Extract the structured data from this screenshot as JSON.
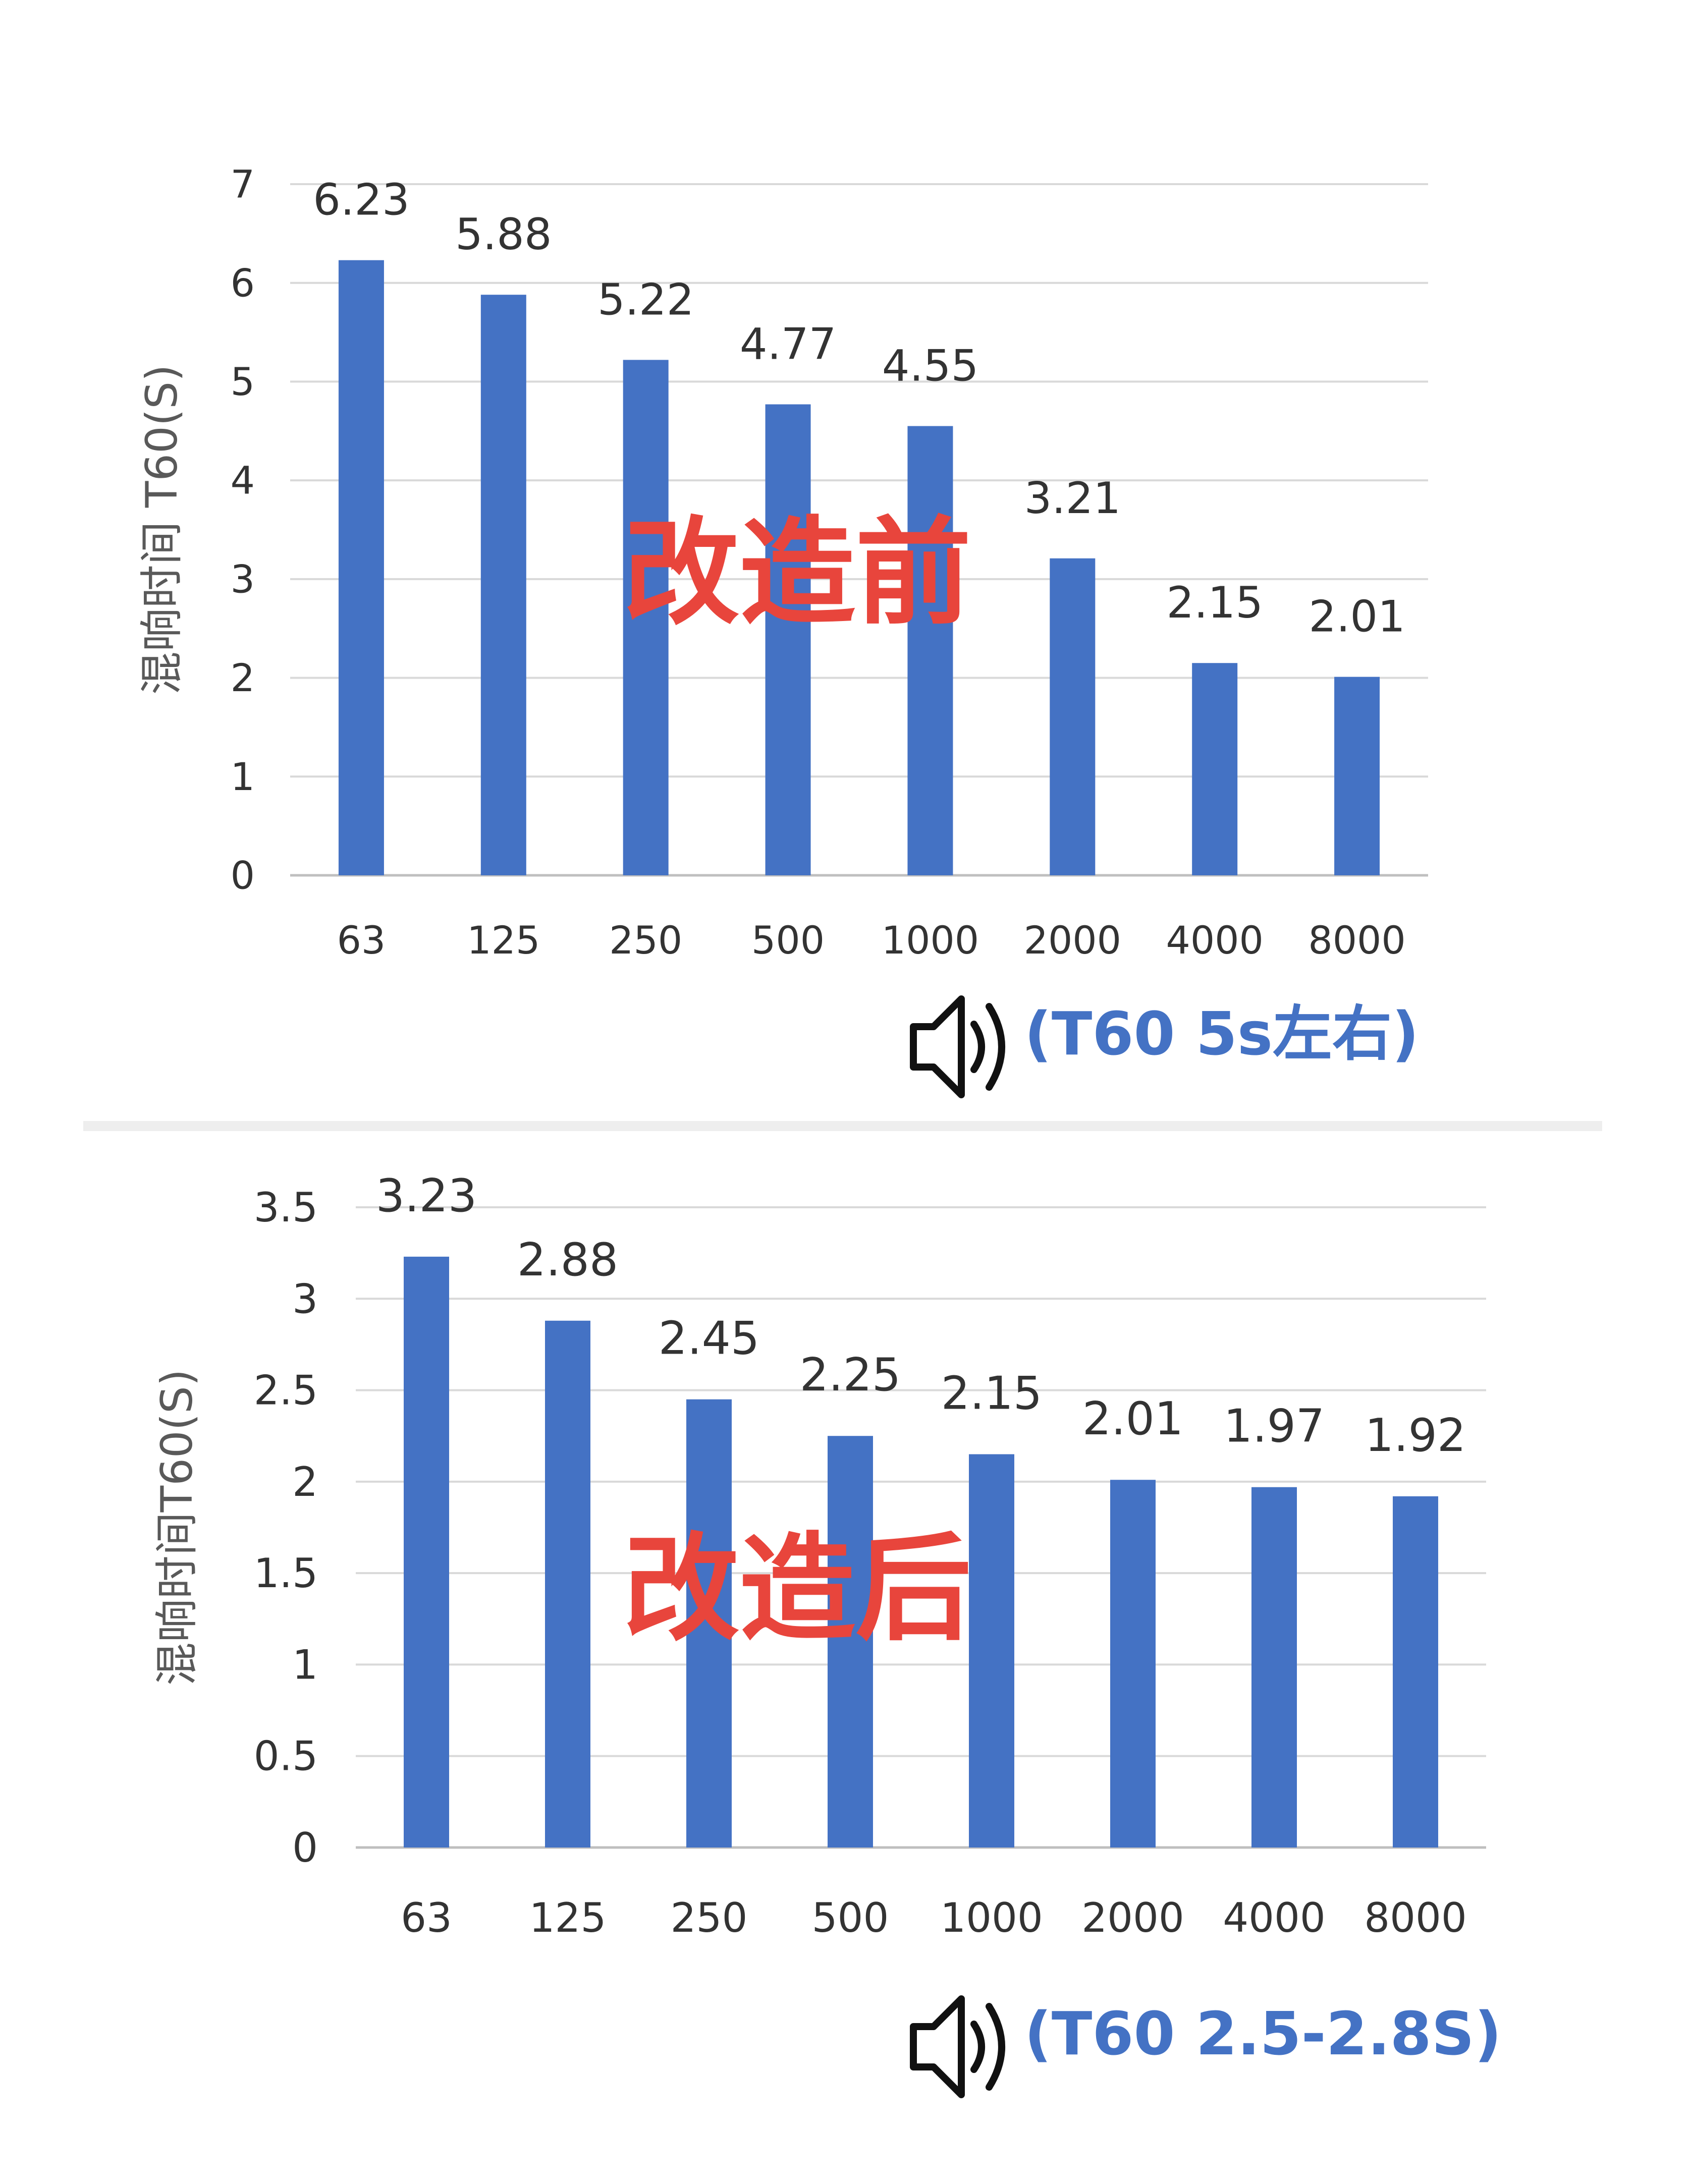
{
  "colors": {
    "bar": "#4472c4",
    "grid": "#d9d9d9",
    "overlay": "#e8453c",
    "note": "#4472c4"
  },
  "chart_data": [
    {
      "type": "bar",
      "title": "",
      "xlabel": "",
      "ylabel": "混响时间 T60(S)",
      "ylim": [
        0,
        7
      ],
      "yticks": [
        "0",
        "1",
        "2",
        "3",
        "4",
        "5",
        "6",
        "7"
      ],
      "categories": [
        "63",
        "125",
        "250",
        "500",
        "1000",
        "2000",
        "4000",
        "8000"
      ],
      "values": [
        6.23,
        5.88,
        5.22,
        4.77,
        4.55,
        3.21,
        2.15,
        2.01
      ],
      "data_labels": [
        "6.23",
        "5.88",
        "5.22",
        "4.77",
        "4.55",
        "3.21",
        "2.15",
        "2.01"
      ],
      "grid": true,
      "overlay_label": "改造前",
      "note": "(T60 5s左右)",
      "note_icon": "speaker-icon"
    },
    {
      "type": "bar",
      "title": "",
      "xlabel": "",
      "ylabel": "混响时间T60(S)",
      "ylim": [
        0,
        3.5
      ],
      "yticks": [
        "0",
        "0.5",
        "1",
        "1.5",
        "2",
        "2.5",
        "3",
        "3.5"
      ],
      "categories": [
        "63",
        "125",
        "250",
        "500",
        "1000",
        "2000",
        "4000",
        "8000"
      ],
      "values": [
        3.23,
        2.88,
        2.45,
        2.25,
        2.15,
        2.01,
        1.97,
        1.92
      ],
      "data_labels": [
        "3.23",
        "2.88",
        "2.45",
        "2.25",
        "2.15",
        "2.01",
        "1.97",
        "1.92"
      ],
      "grid": true,
      "overlay_label": "改造后",
      "note": "(T60 2.5-2.8S)",
      "note_icon": "speaker-icon"
    }
  ]
}
